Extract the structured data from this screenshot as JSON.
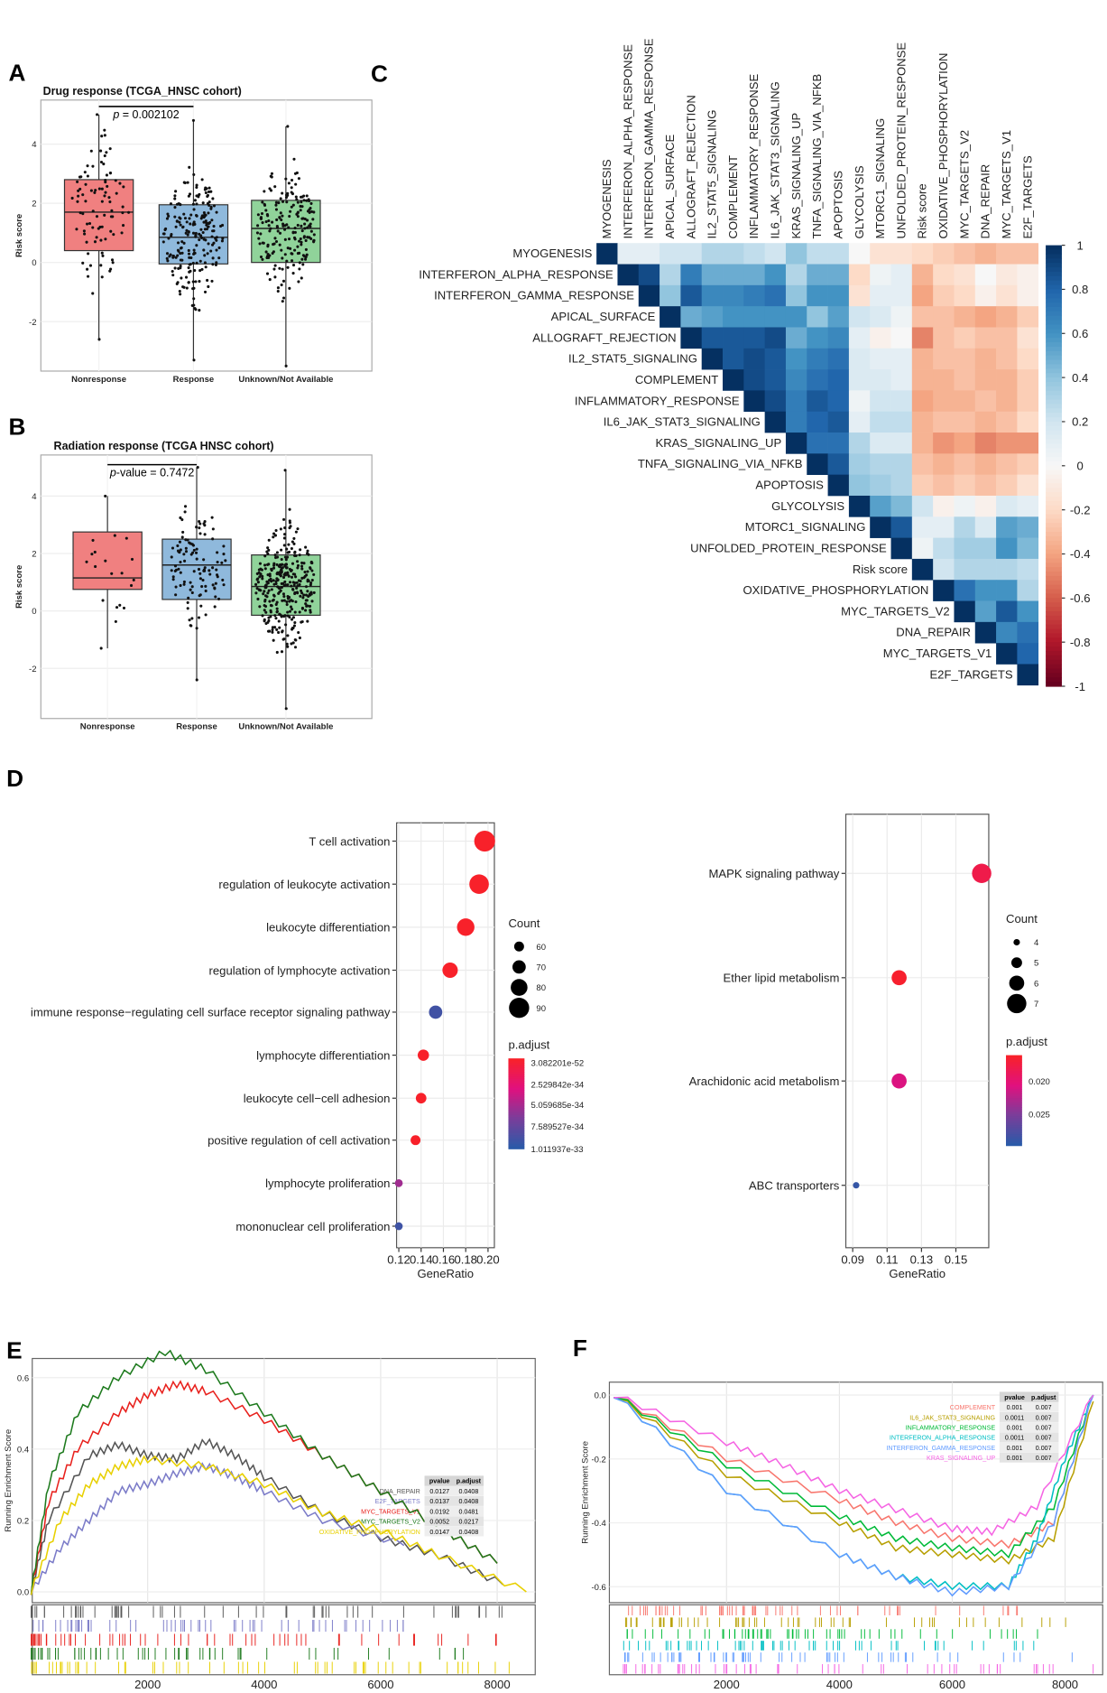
{
  "panel_letters": {
    "A": "A",
    "B": "B",
    "C": "C",
    "D": "D",
    "E": "E",
    "F": "F"
  },
  "chart_data": [
    {
      "id": "A",
      "type": "box",
      "title": "Drug response (TCGA_HNSC cohort)",
      "ylabel": "Risk score",
      "xlabel": "",
      "ylim": [
        -3.5,
        5.2
      ],
      "yticks": [
        -2,
        0,
        2,
        4
      ],
      "categories": [
        "Nonresponse",
        "Response",
        "Unknown/Not Available"
      ],
      "colors": [
        "#f08080",
        "#8fb9dc",
        "#90d39a"
      ],
      "boxes": [
        {
          "q1": 0.4,
          "median": 1.7,
          "q3": 2.8,
          "min": -2.6,
          "max": 5.0,
          "n": 90
        },
        {
          "q1": -0.05,
          "median": 0.85,
          "q3": 1.95,
          "min": -3.3,
          "max": 4.8,
          "n": 220
        },
        {
          "q1": 0.0,
          "median": 1.15,
          "q3": 2.1,
          "min": -3.5,
          "max": 4.6,
          "n": 200
        }
      ],
      "annotation": {
        "prefix": "p",
        "text": " = 0.002102",
        "between": [
          0,
          1
        ]
      }
    },
    {
      "id": "B",
      "type": "box",
      "title": "Radiation response (TCGA HNSC cohort)",
      "ylabel": "Risk score",
      "xlabel": "",
      "ylim": [
        -3.5,
        5.2
      ],
      "yticks": [
        -2,
        0,
        2,
        4
      ],
      "categories": [
        "Nonresponse",
        "Response",
        "Unknown/Not Available"
      ],
      "colors": [
        "#f08080",
        "#8fb9dc",
        "#90d39a"
      ],
      "boxes": [
        {
          "q1": 0.75,
          "median": 1.15,
          "q3": 2.75,
          "min": -1.3,
          "max": 4.0,
          "n": 20
        },
        {
          "q1": 0.4,
          "median": 1.6,
          "q3": 2.5,
          "min": -2.4,
          "max": 5.0,
          "n": 110
        },
        {
          "q1": -0.15,
          "median": 0.85,
          "q3": 1.95,
          "min": -3.4,
          "max": 4.9,
          "n": 330
        }
      ],
      "annotation": {
        "prefix": "p",
        "text": "-value = 0.7472",
        "between": [
          0,
          1
        ]
      }
    },
    {
      "id": "C",
      "type": "heatmap",
      "variables": [
        "MYOGENESIS",
        "INTERFERON_ALPHA_RESPONSE",
        "INTERFERON_GAMMA_RESPONSE",
        "APICAL_SURFACE",
        "ALLOGRAFT_REJECTION",
        "IL2_STAT5_SIGNALING",
        "COMPLEMENT",
        "INFLAMMATORY_RESPONSE",
        "IL6_JAK_STAT3_SIGNALING",
        "KRAS_SIGNALING_UP",
        "TNFA_SIGNALING_VIA_NFKB",
        "APOPTOSIS",
        "GLYCOLYSIS",
        "MTORC1_SIGNALING",
        "UNFOLDED_PROTEIN_RESPONSE",
        "Risk score",
        "OXIDATIVE_PHOSPHORYLATION",
        "MYC_TARGETS_V2",
        "DNA_REPAIR",
        "MYC_TARGETS_V1",
        "E2F_TARGETS"
      ],
      "upper_triangle": [
        [
          0.1,
          0.1,
          0.2,
          0.2,
          0.3,
          0.3,
          0.25,
          0.2,
          0.4,
          0.25,
          0.25,
          0.0,
          -0.15,
          -0.15,
          -0.2,
          -0.25,
          -0.3,
          -0.35,
          -0.3,
          -0.3
        ],
        [
          0.9,
          0.3,
          0.7,
          0.5,
          0.5,
          0.5,
          0.6,
          0.3,
          0.5,
          0.5,
          -0.2,
          0.05,
          0.1,
          -0.35,
          -0.2,
          -0.15,
          0.0,
          -0.1,
          -0.05
        ],
        [
          0.4,
          0.85,
          0.65,
          0.65,
          0.7,
          0.75,
          0.4,
          0.6,
          0.6,
          -0.15,
          0.1,
          0.1,
          -0.4,
          -0.25,
          -0.2,
          -0.05,
          -0.15,
          -0.05
        ],
        [
          0.5,
          0.55,
          0.6,
          0.6,
          0.6,
          0.6,
          0.4,
          0.55,
          0.2,
          0.15,
          0.05,
          -0.3,
          -0.3,
          -0.35,
          -0.4,
          -0.35,
          -0.25
        ],
        [
          0.85,
          0.85,
          0.85,
          0.9,
          0.5,
          0.6,
          0.65,
          0.1,
          -0.05,
          0.0,
          -0.5,
          -0.3,
          -0.25,
          -0.3,
          -0.3,
          -0.15
        ],
        [
          0.85,
          0.9,
          0.85,
          0.6,
          0.7,
          0.75,
          0.15,
          0.1,
          0.1,
          -0.35,
          -0.3,
          -0.3,
          -0.35,
          -0.3,
          -0.2
        ],
        [
          0.9,
          0.85,
          0.65,
          0.75,
          0.8,
          0.15,
          0.15,
          0.1,
          -0.35,
          -0.35,
          -0.3,
          -0.35,
          -0.35,
          -0.25
        ],
        [
          0.9,
          0.7,
          0.85,
          0.8,
          0.05,
          0.2,
          0.2,
          -0.4,
          -0.35,
          -0.35,
          -0.3,
          -0.35,
          -0.25
        ],
        [
          0.7,
          0.8,
          0.85,
          0.1,
          0.25,
          0.25,
          -0.35,
          -0.3,
          -0.3,
          -0.35,
          -0.3,
          -0.2
        ],
        [
          0.75,
          0.75,
          0.3,
          0.15,
          0.15,
          -0.35,
          -0.45,
          -0.4,
          -0.5,
          -0.45,
          -0.45
        ],
        [
          0.85,
          0.35,
          0.3,
          0.3,
          -0.3,
          -0.35,
          -0.3,
          -0.35,
          -0.3,
          -0.25
        ],
        [
          0.4,
          0.35,
          0.3,
          -0.25,
          -0.3,
          -0.25,
          -0.3,
          -0.25,
          -0.15
        ],
        [
          0.55,
          0.45,
          0.2,
          -0.05,
          0.05,
          -0.05,
          0.15,
          0.1
        ],
        [
          0.85,
          0.1,
          0.1,
          0.3,
          0.15,
          0.55,
          0.5
        ],
        [
          0.05,
          0.25,
          0.35,
          0.35,
          0.6,
          0.45
        ],
        [
          0.2,
          0.3,
          0.3,
          0.3,
          0.25
        ],
        [
          0.75,
          0.6,
          0.6,
          0.3
        ],
        [
          0.55,
          0.85,
          0.6
        ],
        [
          0.65,
          0.75
        ],
        [
          0.8
        ]
      ],
      "colorbar_ticks": [
        "1",
        "0.8",
        "0.6",
        "0.4",
        "0.2",
        "0",
        "-0.2",
        "-0.4",
        "-0.6",
        "-0.8",
        "-1"
      ],
      "colorscale": [
        "#67001f",
        "#b2182b",
        "#d6604d",
        "#f4a582",
        "#fddbc7",
        "#f7f7f7",
        "#d1e5f0",
        "#92c5de",
        "#4393c3",
        "#2166ac",
        "#053061"
      ]
    },
    {
      "id": "D-left",
      "type": "scatter",
      "xlabel": "GeneRatio",
      "xlim": [
        0.118,
        0.2
      ],
      "xticks": [
        "0.12",
        "0.14",
        "0.16",
        "0.18",
        "0.20"
      ],
      "terms": [
        "T cell activation",
        "regulation of leukocyte activation",
        "leukocyte differentiation",
        "regulation of lymphocyte activation",
        "immune response−regulating cell surface receptor signaling pathway",
        "lymphocyte differentiation",
        "leukocyte cell−cell adhesion",
        "positive regulation of cell activation",
        "lymphocyte proliferation",
        "mononuclear cell proliferation"
      ],
      "gene_ratio": [
        0.197,
        0.192,
        0.18,
        0.166,
        0.153,
        0.142,
        0.14,
        0.135,
        0.12,
        0.12
      ],
      "count": [
        92,
        88,
        82,
        76,
        70,
        64,
        62,
        60,
        54,
        54
      ],
      "p_adjust": [
        1e-60,
        1e-58,
        1e-55,
        1e-54,
        1e-33,
        5e-45,
        1e-44,
        2e-40,
        6e-34,
        1.01e-33
      ],
      "size_legend": {
        "title": "Count",
        "values": [
          60,
          70,
          80,
          90
        ]
      },
      "color_legend": {
        "title": "p.adjust",
        "labels": [
          "3.082201e-52",
          "2.529842e-34",
          "5.059685e-34",
          "7.589527e-34",
          "1.011937e-33"
        ],
        "max": 1.011937e-33
      }
    },
    {
      "id": "D-right",
      "type": "scatter",
      "xlabel": "GeneRatio",
      "xlim": [
        0.086,
        0.17
      ],
      "xticks": [
        "0.09",
        "0.11",
        "0.13",
        "0.15"
      ],
      "terms": [
        "MAPK signaling pathway",
        "Ether lipid metabolism",
        "Arachidonic acid metabolism",
        "ABC transporters"
      ],
      "gene_ratio": [
        0.165,
        0.117,
        0.117,
        0.092
      ],
      "count": [
        7,
        6,
        6,
        4
      ],
      "p_adjust": [
        0.0185,
        0.0172,
        0.0212,
        0.0285
      ],
      "size_legend": {
        "title": "Count",
        "values": [
          4,
          5,
          6,
          7
        ]
      },
      "color_legend": {
        "title": "p.adjust",
        "labels": [
          "0.020",
          "0.025"
        ],
        "min": 0.017,
        "max": 0.029
      }
    },
    {
      "id": "E",
      "type": "line",
      "ylabel": "Running Enrichment Score",
      "xlim": [
        0,
        8600
      ],
      "ylim": [
        -0.02,
        0.7
      ],
      "xticks": [
        "2000",
        "4000",
        "6000",
        "8000"
      ],
      "yticks": [
        "0.0",
        "0.2",
        "0.4",
        "0.6"
      ],
      "table_headers": [
        "pvalue",
        "p.adjust"
      ],
      "series": [
        {
          "name": "DNA_REPAIR",
          "color": "#555555",
          "pvalue": "0.0127",
          "padjust": "0.0408",
          "points": [
            [
              0,
              0
            ],
            [
              300,
              0.2
            ],
            [
              1000,
              0.38
            ],
            [
              1500,
              0.41
            ],
            [
              2000,
              0.38
            ],
            [
              2500,
              0.37
            ],
            [
              3000,
              0.42
            ],
            [
              3500,
              0.38
            ],
            [
              4000,
              0.32
            ],
            [
              5000,
              0.22
            ],
            [
              6000,
              0.15
            ],
            [
              7000,
              0.1
            ],
            [
              8100,
              0.02
            ]
          ]
        },
        {
          "name": "E2F_TARGETS",
          "color": "#7b7bc8",
          "pvalue": "0.0137",
          "padjust": "0.0408",
          "points": [
            [
              0,
              0
            ],
            [
              500,
              0.12
            ],
            [
              1000,
              0.2
            ],
            [
              1500,
              0.28
            ],
            [
              2000,
              0.3
            ],
            [
              2500,
              0.33
            ],
            [
              3000,
              0.35
            ],
            [
              3500,
              0.32
            ],
            [
              4000,
              0.28
            ],
            [
              5000,
              0.2
            ],
            [
              6400,
              0.13
            ]
          ]
        },
        {
          "name": "MYC_TARGETS_V1",
          "color": "#e8201c",
          "pvalue": "0.0192",
          "padjust": "0.0481",
          "points": [
            [
              0,
              0
            ],
            [
              300,
              0.25
            ],
            [
              800,
              0.4
            ],
            [
              1500,
              0.5
            ],
            [
              2000,
              0.55
            ],
            [
              2500,
              0.58
            ],
            [
              3000,
              0.56
            ],
            [
              4000,
              0.48
            ],
            [
              5000,
              0.38
            ],
            [
              6000,
              0.28
            ],
            [
              7000,
              0.18
            ],
            [
              8000,
              0.08
            ]
          ]
        },
        {
          "name": "MYC_TARGETS_V2",
          "color": "#1d7a1d",
          "pvalue": "0.0052",
          "padjust": "0.0217",
          "points": [
            [
              0,
              0
            ],
            [
              300,
              0.3
            ],
            [
              800,
              0.5
            ],
            [
              1500,
              0.6
            ],
            [
              2300,
              0.67
            ],
            [
              3000,
              0.62
            ],
            [
              4000,
              0.5
            ],
            [
              5000,
              0.38
            ],
            [
              6000,
              0.28
            ],
            [
              7000,
              0.18
            ],
            [
              8000,
              0.08
            ]
          ]
        },
        {
          "name": "OXIDATIVE_PHOSPHORYLATION",
          "color": "#e8d000",
          "pvalue": "0.0147",
          "padjust": "0.0408",
          "points": [
            [
              0,
              0
            ],
            [
              500,
              0.2
            ],
            [
              1000,
              0.3
            ],
            [
              1500,
              0.35
            ],
            [
              2000,
              0.37
            ],
            [
              3000,
              0.35
            ],
            [
              4000,
              0.3
            ],
            [
              5000,
              0.22
            ],
            [
              6000,
              0.17
            ],
            [
              7000,
              0.1
            ],
            [
              8500,
              0.0
            ]
          ]
        }
      ]
    },
    {
      "id": "F",
      "type": "line",
      "ylabel": "Running Enrichment Score",
      "xlim": [
        0,
        8600
      ],
      "ylim": [
        -0.66,
        0.02
      ],
      "xticks": [
        "2000",
        "4000",
        "6000",
        "8000"
      ],
      "yticks": [
        "0.0",
        "-0.2",
        "-0.4",
        "-0.6"
      ],
      "table_headers": [
        "pvalue",
        "p.adjust"
      ],
      "series": [
        {
          "name": "COMPLEMENT",
          "color": "#f8766d",
          "pvalue": "0.001",
          "padjust": "0.007",
          "points": [
            [
              0,
              0
            ],
            [
              2000,
              -0.2
            ],
            [
              4000,
              -0.33
            ],
            [
              5000,
              -0.4
            ],
            [
              6000,
              -0.45
            ],
            [
              7000,
              -0.47
            ],
            [
              7800,
              -0.4
            ],
            [
              8500,
              0
            ]
          ]
        },
        {
          "name": "IL6_JAK_STAT3_SIGNALING",
          "color": "#b79f00",
          "pvalue": "0.0011",
          "padjust": "0.007",
          "points": [
            [
              0,
              0
            ],
            [
              2000,
              -0.25
            ],
            [
              4000,
              -0.4
            ],
            [
              5000,
              -0.48
            ],
            [
              6000,
              -0.5
            ],
            [
              7000,
              -0.52
            ],
            [
              7800,
              -0.45
            ],
            [
              8500,
              -0.02
            ]
          ]
        },
        {
          "name": "INFLAMMATORY_RESPONSE",
          "color": "#00ba38",
          "pvalue": "0.001",
          "padjust": "0.007",
          "points": [
            [
              0,
              0
            ],
            [
              2000,
              -0.22
            ],
            [
              4000,
              -0.38
            ],
            [
              5000,
              -0.45
            ],
            [
              6000,
              -0.48
            ],
            [
              7000,
              -0.5
            ],
            [
              7800,
              -0.35
            ],
            [
              8500,
              0
            ]
          ]
        },
        {
          "name": "INTERFERON_ALPHA_RESPONSE",
          "color": "#00bfc4",
          "pvalue": "0.0011",
          "padjust": "0.007",
          "points": [
            [
              0,
              0
            ],
            [
              2000,
              -0.3
            ],
            [
              4000,
              -0.5
            ],
            [
              5000,
              -0.57
            ],
            [
              6000,
              -0.6
            ],
            [
              7000,
              -0.6
            ],
            [
              7500,
              -0.45
            ],
            [
              8000,
              -0.2
            ],
            [
              8500,
              0
            ]
          ]
        },
        {
          "name": "INTERFERON_GAMMA_RESPONSE",
          "color": "#619cff",
          "pvalue": "0.001",
          "padjust": "0.007",
          "points": [
            [
              0,
              0
            ],
            [
              2000,
              -0.3
            ],
            [
              4000,
              -0.5
            ],
            [
              5000,
              -0.57
            ],
            [
              6000,
              -0.62
            ],
            [
              7000,
              -0.6
            ],
            [
              7800,
              -0.4
            ],
            [
              8500,
              0
            ]
          ]
        },
        {
          "name": "KRAS_SIGNALING_UP",
          "color": "#f564e3",
          "pvalue": "0.001",
          "padjust": "0.007",
          "points": [
            [
              0,
              0
            ],
            [
              2000,
              -0.15
            ],
            [
              3000,
              -0.22
            ],
            [
              4000,
              -0.3
            ],
            [
              5000,
              -0.36
            ],
            [
              6000,
              -0.42
            ],
            [
              6700,
              -0.43
            ],
            [
              7500,
              -0.35
            ],
            [
              8500,
              0
            ]
          ]
        }
      ]
    }
  ]
}
